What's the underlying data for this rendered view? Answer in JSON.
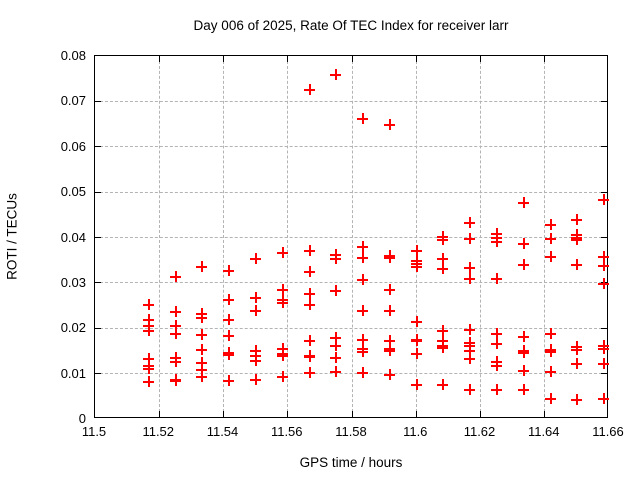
{
  "title": "Day 006 of 2025, Rate Of TEC Index for receiver larr",
  "colors": {
    "marker": "#ff0000",
    "grid": "#b3b3b3",
    "border": "#000000",
    "background": "#ffffff"
  },
  "chart_data": {
    "type": "scatter",
    "title": "Day 006 of 2025, Rate Of TEC Index for receiver larr",
    "xlabel": "GPS time / hours",
    "ylabel": "ROTI / TECUs",
    "xlim": [
      11.5,
      11.66
    ],
    "ylim": [
      0,
      0.08
    ],
    "xticks": [
      11.5,
      11.52,
      11.54,
      11.56,
      11.58,
      11.6,
      11.62,
      11.64,
      11.66
    ],
    "xtick_labels": [
      "11.5",
      "11.52",
      "11.54",
      "11.56",
      "11.58",
      "11.6",
      "11.62",
      "11.64",
      "11.66"
    ],
    "yticks": [
      0,
      0.01,
      0.02,
      0.03,
      0.04,
      0.05,
      0.06,
      0.07,
      0.08
    ],
    "ytick_labels": [
      "0",
      "0.01",
      "0.02",
      "0.03",
      "0.04",
      "0.05",
      "0.06",
      "0.07",
      "0.08"
    ],
    "grid": true,
    "legend": "none",
    "marker": "plus",
    "marker_color": "#ff0000",
    "series": [
      {
        "name": "ROTI",
        "color": "#ff0000",
        "columns": [
          {
            "t": 11.5167,
            "values": [
              0.0253,
              0.022,
              0.0206,
              0.0194,
              0.0133,
              0.0119,
              0.0112,
              0.0082
            ]
          },
          {
            "t": 11.525,
            "values": [
              0.0315,
              0.0236,
              0.0205,
              0.0188,
              0.0135,
              0.0126,
              0.0088,
              0.0085
            ]
          },
          {
            "t": 11.5333,
            "values": [
              0.0335,
              0.0232,
              0.0223,
              0.0187,
              0.0154,
              0.0124,
              0.0108,
              0.0093
            ]
          },
          {
            "t": 11.5417,
            "values": [
              0.0328,
              0.0264,
              0.022,
              0.0185,
              0.0146,
              0.0143,
              0.0084
            ]
          },
          {
            "t": 11.55,
            "values": [
              0.0353,
              0.0267,
              0.024,
              0.0151,
              0.0141,
              0.013,
              0.0086
            ]
          },
          {
            "t": 11.5583,
            "values": [
              0.0368,
              0.0285,
              0.0263,
              0.0256,
              0.0155,
              0.0144,
              0.014,
              0.0093
            ]
          },
          {
            "t": 11.5667,
            "values": [
              0.0727,
              0.0372,
              0.0326,
              0.0277,
              0.0253,
              0.0174,
              0.014,
              0.0137,
              0.0102
            ]
          },
          {
            "t": 11.575,
            "values": [
              0.076,
              0.0363,
              0.0353,
              0.0284,
              0.0179,
              0.0162,
              0.0135,
              0.0104
            ]
          },
          {
            "t": 11.5833,
            "values": [
              0.0663,
              0.038,
              0.0357,
              0.0308,
              0.024,
              0.0176,
              0.0155,
              0.0149,
              0.0102
            ]
          },
          {
            "t": 11.5917,
            "values": [
              0.0649,
              0.036,
              0.0355,
              0.0285,
              0.024,
              0.0174,
              0.0155,
              0.0152,
              0.0099
            ]
          },
          {
            "t": 11.6,
            "values": [
              0.0372,
              0.035,
              0.0343,
              0.0337,
              0.0214,
              0.0176,
              0.0172,
              0.0145,
              0.0075
            ]
          },
          {
            "t": 11.6083,
            "values": [
              0.0402,
              0.0396,
              0.0353,
              0.0331,
              0.0196,
              0.0173,
              0.0161,
              0.0157,
              0.0075
            ]
          },
          {
            "t": 11.6167,
            "values": [
              0.0433,
              0.0398,
              0.0334,
              0.0309,
              0.0198,
              0.0168,
              0.0162,
              0.015,
              0.0134,
              0.0065
            ]
          },
          {
            "t": 11.625,
            "values": [
              0.0409,
              0.0401,
              0.0392,
              0.0309,
              0.0188,
              0.0166,
              0.0126,
              0.0118,
              0.0065
            ]
          },
          {
            "t": 11.6333,
            "values": [
              0.0477,
              0.0387,
              0.0341,
              0.0181,
              0.0152,
              0.0146,
              0.0106,
              0.0065
            ]
          },
          {
            "t": 11.6417,
            "values": [
              0.0428,
              0.0398,
              0.0359,
              0.0188,
              0.0154,
              0.0148,
              0.0104,
              0.0046
            ]
          },
          {
            "t": 11.65,
            "values": [
              0.0439,
              0.0407,
              0.0401,
              0.0396,
              0.0341,
              0.0159,
              0.0154,
              0.0122,
              0.0043
            ]
          },
          {
            "t": 11.6583,
            "values": [
              0.0483,
              0.0359,
              0.0339,
              0.0298,
              0.0161,
              0.0156,
              0.0122,
              0.0046
            ]
          }
        ]
      }
    ]
  }
}
